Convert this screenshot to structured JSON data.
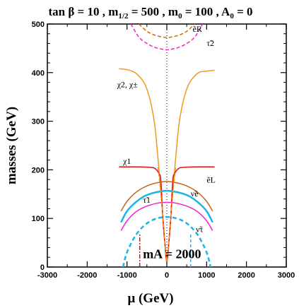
{
  "chart_data": {
    "type": "line",
    "title": "tan β = 10 ,  m1/2 = 500 ,  m0 = 100 , A0 = 0",
    "xlabel": "μ (GeV)",
    "ylabel": "masses (GeV)",
    "xlim": [
      -3000,
      3000
    ],
    "ylim": [
      0,
      500
    ],
    "xticks": [
      -3000,
      -2000,
      -1000,
      0,
      1000,
      2000,
      3000
    ],
    "yticks": [
      0,
      100,
      200,
      300,
      400,
      500
    ],
    "grid": false,
    "legend": "none",
    "series": [
      {
        "name": "ẽR",
        "color": "#cc6a00",
        "dash": "5,3",
        "x": [
          -700,
          -500,
          -300,
          -100,
          0,
          100,
          300,
          500,
          700
        ],
        "y": [
          500,
          485,
          477,
          473,
          472,
          473,
          477,
          485,
          500
        ]
      },
      {
        "name": "τ̃2",
        "color": "#ee22cc",
        "dash": "5,3",
        "x": [
          -900,
          -700,
          -500,
          -300,
          -100,
          0,
          100,
          300,
          500,
          700,
          900
        ],
        "y": [
          500,
          473,
          460,
          452,
          448,
          447,
          448,
          452,
          460,
          473,
          500
        ]
      },
      {
        "name": "χ2, χ±",
        "color": "#ee9a22",
        "dash": "",
        "x": [
          -1200,
          -1000,
          -800,
          -600,
          -500,
          -400,
          -300,
          -200,
          -100,
          -50,
          0,
          50,
          100,
          200,
          300,
          400,
          500,
          600,
          800,
          1000,
          1200
        ],
        "y": [
          408,
          406,
          400,
          383,
          366,
          337,
          290,
          203,
          105,
          52,
          10,
          52,
          105,
          203,
          290,
          337,
          366,
          383,
          400,
          403,
          405
        ]
      },
      {
        "name": "χ1",
        "color": "#dd1111",
        "dash": "",
        "x": [
          -1200,
          -700,
          -400,
          -300,
          -200,
          -150,
          -100,
          -50,
          0,
          50,
          100,
          150,
          200,
          300,
          400,
          700,
          1200
        ],
        "y": [
          206,
          206,
          205,
          203,
          193,
          178,
          100,
          50,
          10,
          50,
          100,
          178,
          193,
          203,
          205,
          206,
          206
        ]
      },
      {
        "name": "ẽL",
        "color": "#c86414",
        "dash": "",
        "x": [
          -1150,
          -1000,
          -800,
          -600,
          -400,
          -200,
          0,
          200,
          400,
          600,
          800,
          1000,
          1150
        ],
        "y": [
          115,
          135,
          152,
          163,
          170,
          174,
          176,
          174,
          170,
          163,
          152,
          135,
          115
        ]
      },
      {
        "name": "ν̃e",
        "color": "#1ab4e8",
        "dash": "",
        "x": [
          -1150,
          -1000,
          -800,
          -600,
          -400,
          -200,
          0,
          200,
          400,
          600,
          800,
          1000,
          1150
        ],
        "y": [
          92,
          115,
          132,
          144,
          151,
          155,
          157,
          155,
          151,
          144,
          132,
          115,
          92
        ]
      },
      {
        "name": "τ̃1",
        "color": "#ee22cc",
        "dash": "",
        "x": [
          -1150,
          -1000,
          -800,
          -600,
          -400,
          -200,
          0,
          200,
          400,
          600,
          800,
          1000,
          1150
        ],
        "y": [
          75,
          95,
          112,
          122,
          128,
          132,
          133,
          132,
          128,
          122,
          112,
          95,
          75
        ]
      },
      {
        "name": "ν̃τ",
        "color": "#1ab4e8",
        "dash": "6,4",
        "x": [
          -1100,
          -1000,
          -800,
          -600,
          -400,
          -200,
          0,
          200,
          400,
          600,
          800,
          1000,
          1100
        ],
        "y": [
          0,
          30,
          63,
          83,
          95,
          101,
          103,
          101,
          95,
          83,
          63,
          30,
          0
        ]
      },
      {
        "name": "χ2 (dashed)",
        "color": "#ee9a22",
        "dash": "5,3",
        "x": [
          -220,
          -150,
          -90,
          -40,
          0,
          40,
          90,
          150,
          220
        ],
        "y": [
          205,
          150,
          95,
          45,
          10,
          45,
          95,
          150,
          205
        ]
      },
      {
        "name": "mA marker",
        "color": "#dd1111",
        "dash": "6,2,2,2",
        "x": [
          -680,
          -680
        ],
        "y": [
          0,
          70
        ]
      },
      {
        "name": "",
        "color": "#1ab4e8",
        "dash": "4,3",
        "x": [
          600,
          600
        ],
        "y": [
          0,
          70
        ]
      }
    ],
    "curve_labels": [
      {
        "text": "ẽR",
        "x": 650,
        "y": 484
      },
      {
        "text": "τ̃2",
        "x": 1000,
        "y": 455
      },
      {
        "text": "χ2, χ±",
        "x": -1250,
        "y": 370
      },
      {
        "text": "χ1",
        "x": -1100,
        "y": 212
      },
      {
        "text": "ẽL",
        "x": 1000,
        "y": 174
      },
      {
        "text": "ν̃e",
        "x": 600,
        "y": 145
      },
      {
        "text": "τ̃1",
        "x": -600,
        "y": 132
      },
      {
        "text": "ν̃τ",
        "x": 730,
        "y": 72
      }
    ],
    "annotation": {
      "text": "mA = 2000",
      "x": -600,
      "y": 18
    }
  }
}
